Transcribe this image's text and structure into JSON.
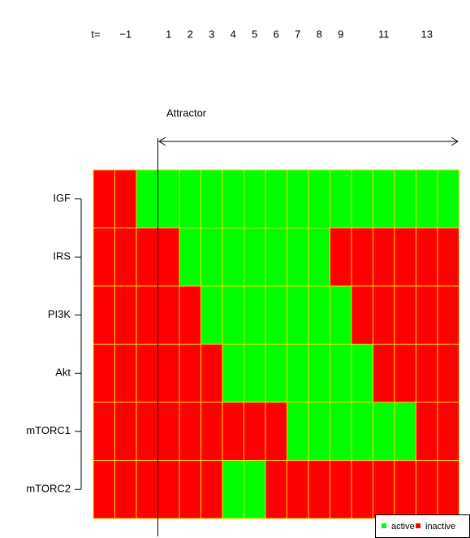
{
  "chart_data": {
    "type": "heatmap",
    "x_label": "t=",
    "categories": [
      null,
      "−1",
      null,
      "1",
      "2",
      "3",
      "4",
      "5",
      "6",
      "7",
      "8",
      "9",
      null,
      "11",
      null,
      "13",
      null
    ],
    "series": [
      {
        "name": "IGF",
        "values": [
          0,
          0,
          1,
          1,
          1,
          1,
          1,
          1,
          1,
          1,
          1,
          1,
          1,
          1,
          1,
          1,
          1
        ]
      },
      {
        "name": "IRS",
        "values": [
          0,
          0,
          0,
          0,
          1,
          1,
          1,
          1,
          1,
          1,
          1,
          0,
          0,
          0,
          0,
          0,
          0
        ]
      },
      {
        "name": "PI3K",
        "values": [
          0,
          0,
          0,
          0,
          0,
          1,
          1,
          1,
          1,
          1,
          1,
          1,
          0,
          0,
          0,
          0,
          0
        ]
      },
      {
        "name": "Akt",
        "values": [
          0,
          0,
          0,
          0,
          0,
          0,
          1,
          1,
          1,
          1,
          1,
          1,
          1,
          0,
          0,
          0,
          0
        ]
      },
      {
        "name": "mTORC1",
        "values": [
          0,
          0,
          0,
          0,
          0,
          0,
          0,
          0,
          0,
          1,
          1,
          1,
          1,
          1,
          1,
          0,
          0
        ]
      },
      {
        "name": "mTORC2",
        "values": [
          0,
          0,
          0,
          0,
          0,
          0,
          1,
          1,
          0,
          0,
          0,
          0,
          0,
          0,
          0,
          0,
          0
        ]
      }
    ],
    "legend": [
      {
        "name": "active",
        "value": 1,
        "color": "#00ff00"
      },
      {
        "name": "inactive",
        "value": 0,
        "color": "#ff0000"
      }
    ],
    "annotation": "Attractor",
    "cell_border_color": "#ffd700"
  }
}
